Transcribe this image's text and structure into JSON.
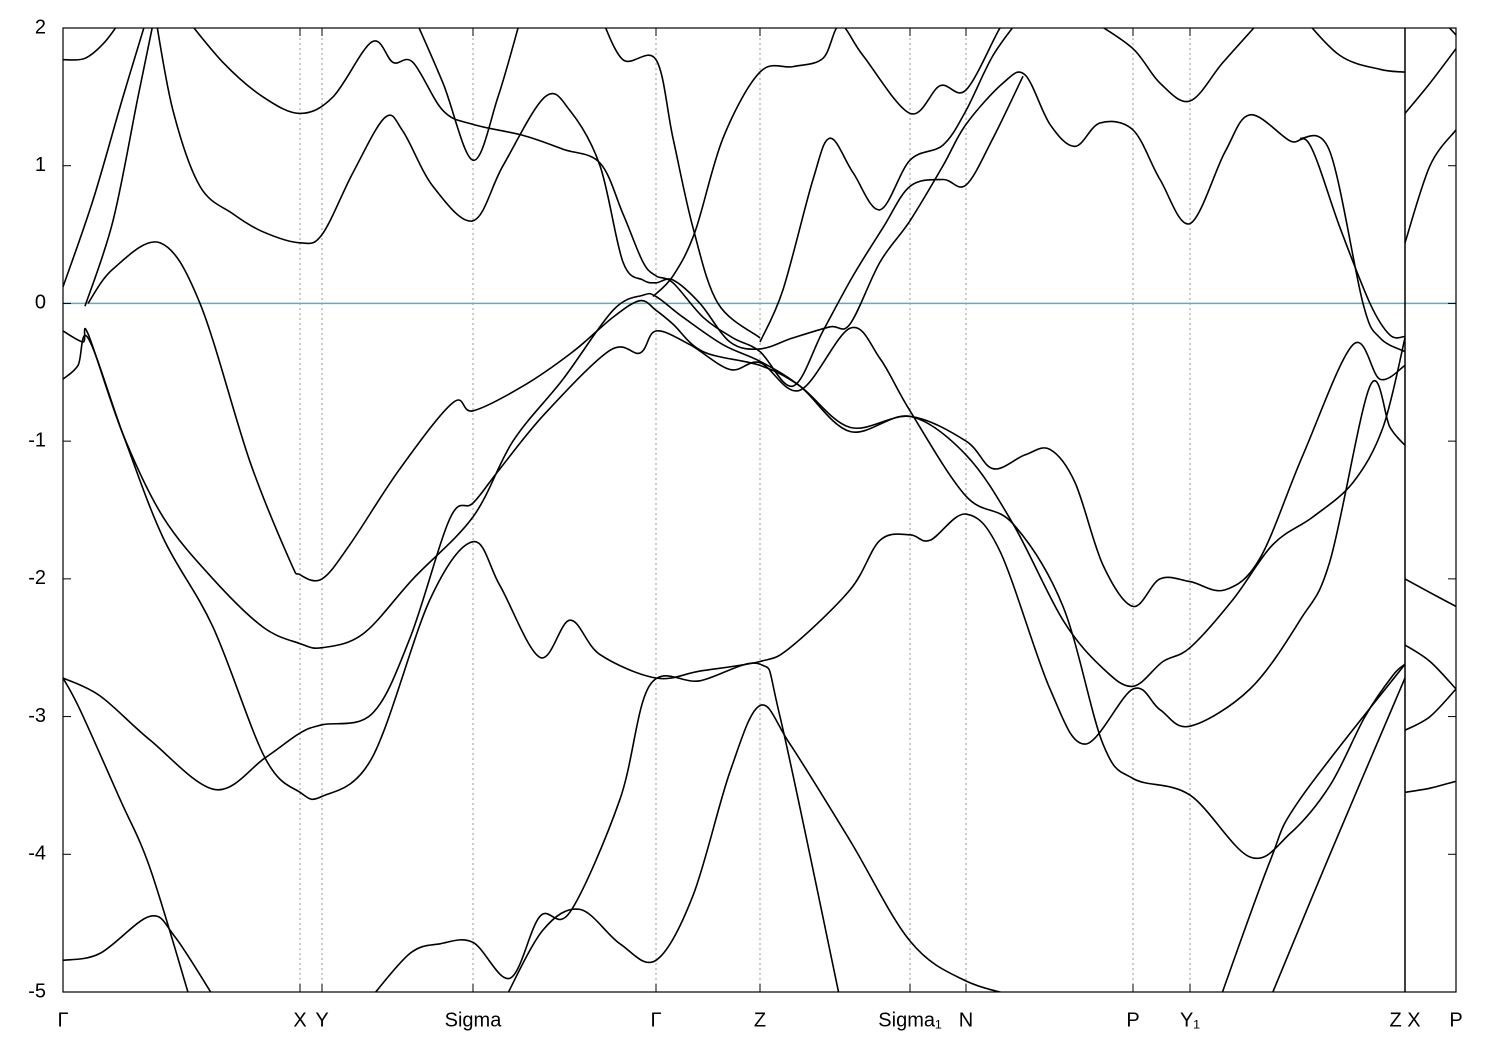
{
  "chart_data": {
    "type": "line",
    "color": "#000000",
    "xlim": [
      0,
      13.93
    ],
    "ylim": [
      -5,
      2
    ],
    "yticks": [
      -5,
      -4,
      -3,
      -2,
      -1,
      0,
      1,
      2
    ],
    "xticks": [
      {
        "value": 0,
        "label": "Γ"
      },
      {
        "value": 2.37,
        "label": "X"
      },
      {
        "value": 2.59,
        "label": "Y"
      },
      {
        "value": 4.1,
        "label": "Sigma"
      },
      {
        "value": 5.93,
        "label": "Γ"
      },
      {
        "value": 6.97,
        "label": "Z"
      },
      {
        "value": 8.47,
        "label": "Sigma₁"
      },
      {
        "value": 9.03,
        "label": "N"
      },
      {
        "value": 10.7,
        "label": "P"
      },
      {
        "value": 11.27,
        "label": "Y₁"
      },
      {
        "value": 13.42,
        "label": "Z  X"
      },
      {
        "value": 13.93,
        "label": "P"
      }
    ],
    "grid": true,
    "segment_breaks": [
      13.42
    ],
    "hline": {
      "value": 0,
      "color": "#5aaec8"
    },
    "series": [
      {
        "x": [
          0,
          0.22,
          0.42,
          0.62
        ],
        "values": [
          1.77,
          1.78,
          1.9,
          2.1
        ]
      },
      {
        "x": [
          0,
          0.3,
          0.6,
          0.85
        ],
        "values": [
          0.12,
          0.75,
          1.5,
          2.1
        ]
      },
      {
        "x": [
          0.22,
          0.5,
          0.75,
          0.92
        ],
        "values": [
          -0.02,
          0.6,
          1.5,
          2.1
        ]
      },
      {
        "x": [
          0.92,
          1.1,
          1.37,
          1.7,
          2.0,
          2.37,
          2.59,
          2.9,
          3.22,
          3.4,
          3.7,
          4.1,
          4.4,
          4.82,
          5.07,
          5.37,
          5.6,
          5.8,
          5.93,
          6.1,
          6.37,
          6.67,
          6.97,
          7.3,
          7.67,
          7.87,
          8.17,
          8.47,
          8.8,
          9.03,
          9.4,
          9.62,
          9.87,
          10.12,
          10.37,
          10.7,
          10.97,
          11.27,
          11.62,
          11.87,
          12.27,
          12.47,
          12.77,
          13.07,
          13.27,
          13.42
        ],
        "values": [
          2.1,
          1.4,
          0.85,
          0.65,
          0.52,
          0.44,
          0.5,
          0.95,
          1.35,
          1.25,
          0.85,
          0.6,
          1.0,
          1.5,
          1.4,
          1.0,
          0.3,
          0.17,
          0.15,
          0.17,
          0.0,
          -0.28,
          -0.33,
          -0.25,
          -0.17,
          -0.15,
          0.3,
          0.6,
          1.0,
          1.3,
          1.6,
          1.66,
          1.3,
          1.14,
          1.31,
          1.26,
          0.9,
          0.58,
          1.1,
          1.37,
          1.18,
          1.15,
          0.55,
          0.0,
          -0.23,
          -0.24
        ]
      },
      {
        "x": [
          1.2,
          1.6,
          2.0,
          2.37,
          2.7,
          3.09,
          3.3,
          3.5,
          3.8,
          4.1,
          4.6,
          5.0,
          5.37,
          5.6,
          5.8,
          5.93,
          6.1,
          6.4,
          6.7,
          6.97,
          7.3,
          7.6,
          7.9,
          8.2,
          8.47,
          8.8,
          9.03,
          9.3,
          9.6
        ],
        "values": [
          2.1,
          1.75,
          1.5,
          1.38,
          1.5,
          1.9,
          1.75,
          1.75,
          1.4,
          1.3,
          1.22,
          1.12,
          1.02,
          0.65,
          0.3,
          0.2,
          0.15,
          -0.1,
          -0.25,
          -0.35,
          -0.6,
          -0.2,
          0.2,
          0.55,
          0.85,
          0.9,
          0.86,
          1.2,
          1.65
        ]
      },
      {
        "x": [
          3.5,
          3.8,
          4.1,
          4.35,
          4.57
        ],
        "values": [
          2.1,
          1.6,
          1.04,
          1.5,
          2.05
        ]
      },
      {
        "x": [
          5.37,
          5.6,
          5.93,
          6.1,
          6.3,
          6.55,
          6.97
        ],
        "values": [
          2.1,
          1.77,
          1.77,
          1.2,
          0.55,
          0.0,
          -0.25
        ]
      },
      {
        "x": [
          5.9,
          6.1,
          6.32,
          6.6,
          6.97,
          7.3,
          7.6,
          7.77,
          8.0,
          8.47,
          8.77,
          9.03,
          9.37,
          9.5
        ],
        "values": [
          0.05,
          0.2,
          0.52,
          1.2,
          1.68,
          1.72,
          1.78,
          2.02,
          1.8,
          1.38,
          1.58,
          1.55,
          2.0,
          2.1
        ]
      },
      {
        "x": [
          6.97,
          7.2,
          7.5,
          7.67,
          7.9,
          8.17,
          8.47,
          8.8,
          9.03,
          9.3,
          9.6
        ],
        "values": [
          -0.28,
          0.1,
          0.9,
          1.2,
          0.95,
          0.68,
          1.04,
          1.15,
          1.4,
          1.8,
          2.1
        ]
      },
      {
        "x": [
          10.3,
          10.7,
          10.97,
          11.27,
          11.6,
          11.97
        ],
        "values": [
          2.05,
          1.85,
          1.6,
          1.47,
          1.75,
          2.05
        ]
      },
      {
        "x": [
          0.25,
          0.5,
          0.97,
          1.37,
          1.87,
          2.27,
          2.37,
          2.59,
          2.87,
          3.37,
          3.9,
          4.1,
          4.6,
          5.1,
          5.5,
          5.77,
          5.93,
          6.1,
          6.4,
          6.97,
          7.37,
          7.87,
          8.47,
          9.03,
          9.3,
          9.62,
          9.87,
          10.12,
          10.4,
          10.7,
          10.97,
          11.27,
          11.62,
          11.97,
          12.4,
          12.9,
          13.17,
          13.42
        ],
        "values": [
          0.0,
          0.25,
          0.44,
          0.0,
          -1.15,
          -1.87,
          -1.97,
          -2.0,
          -1.75,
          -1.2,
          -0.72,
          -0.78,
          -0.6,
          -0.35,
          -0.1,
          0.02,
          -0.05,
          -0.15,
          -0.35,
          -0.45,
          -0.6,
          -0.9,
          -0.82,
          -1.0,
          -1.2,
          -1.1,
          -1.06,
          -1.3,
          -1.9,
          -2.2,
          -2.0,
          -2.02,
          -2.08,
          -1.85,
          -1.1,
          -0.3,
          -0.55,
          -0.45
        ]
      },
      {
        "x": [
          0,
          0.2,
          0.25,
          0.6,
          1.0,
          1.5,
          2.0,
          2.37,
          2.59,
          3.0,
          3.5,
          4.1,
          4.5,
          5.0,
          5.5,
          5.8,
          5.93,
          6.2,
          6.6,
          6.97,
          7.37,
          7.87,
          8.47,
          9.03,
          9.5,
          10.0,
          10.4,
          10.7,
          11.0,
          11.27,
          11.7,
          12.1,
          12.5,
          12.9,
          13.2,
          13.42
        ],
        "values": [
          -0.2,
          -0.28,
          -0.22,
          -0.95,
          -1.55,
          -2.0,
          -2.35,
          -2.47,
          -2.5,
          -2.4,
          -2.0,
          -1.55,
          -1.0,
          -0.55,
          -0.05,
          0.06,
          0.05,
          -0.1,
          -0.3,
          -0.42,
          -0.6,
          -0.93,
          -0.82,
          -1.1,
          -1.6,
          -2.3,
          -2.65,
          -2.78,
          -2.6,
          -2.5,
          -2.15,
          -1.75,
          -1.55,
          -1.3,
          -0.9,
          -0.25
        ]
      },
      {
        "x": [
          0,
          0.15,
          0.25,
          0.6,
          1.0,
          1.5,
          2.02,
          2.37,
          2.59,
          3.09,
          3.67,
          4.1,
          4.37,
          4.77,
          5.07,
          5.37,
          5.93,
          6.37,
          6.97,
          7.27,
          7.87,
          8.17,
          8.47,
          8.67,
          9.03,
          9.37,
          9.87,
          10.22,
          10.7,
          10.97,
          11.27,
          11.87,
          12.37,
          12.67,
          13.07,
          13.27,
          13.42
        ],
        "values": [
          -0.55,
          -0.45,
          -0.25,
          -0.95,
          -1.7,
          -2.35,
          -3.3,
          -3.55,
          -3.58,
          -3.3,
          -2.15,
          -1.73,
          -2.05,
          -2.57,
          -2.3,
          -2.55,
          -2.72,
          -2.67,
          -2.6,
          -2.5,
          -2.08,
          -1.72,
          -1.68,
          -1.72,
          -1.53,
          -1.8,
          -2.8,
          -3.2,
          -2.8,
          -2.95,
          -3.07,
          -2.8,
          -2.3,
          -1.87,
          -0.6,
          -0.9,
          -1.03
        ]
      },
      {
        "x": [
          0,
          0.37,
          0.87,
          1.52,
          2.02,
          2.37,
          2.59,
          3.09,
          3.47,
          3.87,
          4.1,
          4.37,
          4.82,
          5.47,
          5.77,
          5.93,
          6.27,
          6.67,
          6.97,
          7.37,
          7.87,
          8.17,
          8.47,
          9.03,
          9.5,
          10.0,
          10.4,
          10.7,
          11.27,
          11.87,
          12.27,
          12.67,
          13.02,
          13.3,
          13.42
        ],
        "values": [
          -2.72,
          -2.85,
          -3.17,
          -3.53,
          -3.3,
          -3.12,
          -3.06,
          -2.98,
          -2.43,
          -1.56,
          -1.45,
          -1.2,
          -0.8,
          -0.34,
          -0.36,
          -0.2,
          -0.3,
          -0.48,
          -0.43,
          -0.63,
          -0.18,
          -0.4,
          -0.78,
          -1.4,
          -1.6,
          -2.2,
          -3.2,
          -3.45,
          -3.57,
          -4.02,
          -3.85,
          -3.5,
          -3.0,
          -2.7,
          -2.62
        ]
      },
      {
        "x": [
          0,
          0.17,
          0.57,
          0.87,
          1.27
        ],
        "values": [
          -2.72,
          -2.95,
          -3.6,
          -4.1,
          -5.05
        ]
      },
      {
        "x": [
          0,
          0.37,
          0.87,
          1.12,
          1.52
        ],
        "values": [
          -4.77,
          -4.72,
          -4.45,
          -4.6,
          -5.05
        ]
      },
      {
        "x": [
          3.07,
          3.47,
          3.77,
          4.1,
          4.47,
          4.77,
          5.07,
          5.57,
          5.87,
          6.37,
          6.97,
          7.17,
          7.77
        ],
        "values": [
          -5.05,
          -4.72,
          -4.65,
          -4.64,
          -4.9,
          -4.45,
          -4.42,
          -3.6,
          -2.77,
          -2.74,
          -2.62,
          -3.0,
          -5.05
        ]
      },
      {
        "x": [
          4.42,
          4.8,
          5.17,
          5.57,
          5.93,
          6.3,
          6.67,
          6.97,
          7.27,
          7.87,
          8.47,
          9.03,
          9.67
        ],
        "values": [
          -5.05,
          -4.55,
          -4.4,
          -4.65,
          -4.77,
          -4.3,
          -3.4,
          -2.92,
          -3.2,
          -3.9,
          -4.63,
          -4.92,
          -5.05
        ]
      },
      {
        "x": [
          11.57,
          12.07,
          12.37,
          13.42
        ],
        "values": [
          -5.05,
          -4.05,
          -3.6,
          -2.62
        ]
      },
      {
        "x": [
          12.07,
          12.67,
          13.42
        ],
        "values": [
          -5.05,
          -4.0,
          -2.72
        ]
      },
      {
        "x": [
          12.37,
          12.77,
          13.17,
          13.42
        ],
        "values": [
          2.1,
          1.8,
          1.7,
          1.68
        ]
      },
      {
        "x": [
          12.37,
          12.67,
          13.0,
          13.17,
          13.42
        ],
        "values": [
          1.2,
          1.1,
          0.0,
          -0.25,
          -0.35
        ]
      },
      {
        "x": [
          13.42,
          13.67,
          13.93
        ],
        "values": [
          1.38,
          1.6,
          1.85
        ]
      },
      {
        "x": [
          13.42,
          13.67,
          13.93
        ],
        "values": [
          0.44,
          1.0,
          1.26
        ]
      },
      {
        "x": [
          13.42,
          13.67,
          13.93
        ],
        "values": [
          -2.0,
          -2.1,
          -2.2
        ]
      },
      {
        "x": [
          13.42,
          13.67,
          13.93
        ],
        "values": [
          -2.48,
          -2.6,
          -2.8
        ]
      },
      {
        "x": [
          13.42,
          13.67,
          13.93
        ],
        "values": [
          -3.1,
          -3.0,
          -2.8
        ]
      },
      {
        "x": [
          13.42,
          13.67,
          13.93
        ],
        "values": [
          -3.55,
          -3.52,
          -3.47
        ]
      },
      {
        "x": [
          13.8,
          13.93
        ],
        "values": [
          2.05,
          1.95
        ]
      }
    ]
  }
}
